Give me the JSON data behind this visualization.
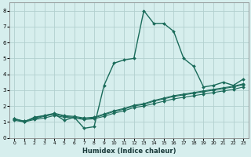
{
  "xlabel": "Humidex (Indice chaleur)",
  "xlim": [
    -0.5,
    23.5
  ],
  "ylim": [
    0,
    8.5
  ],
  "xticks": [
    0,
    1,
    2,
    3,
    4,
    5,
    6,
    7,
    8,
    9,
    10,
    11,
    12,
    13,
    14,
    15,
    16,
    17,
    18,
    19,
    20,
    21,
    22,
    23
  ],
  "yticks": [
    0,
    1,
    2,
    3,
    4,
    5,
    6,
    7,
    8
  ],
  "bg_color": "#d6eeed",
  "grid_color": "#b2d0ce",
  "line_color": "#1a6b5a",
  "series": [
    {
      "x": [
        0,
        1,
        2,
        3,
        4,
        5,
        6,
        7,
        8,
        9,
        10,
        11,
        12,
        13,
        14,
        15,
        16,
        17,
        18,
        19,
        20,
        21,
        22,
        23
      ],
      "y": [
        1.2,
        1.0,
        1.3,
        1.4,
        1.5,
        1.1,
        1.3,
        0.6,
        0.7,
        3.3,
        4.7,
        4.9,
        5.0,
        8.0,
        7.2,
        7.2,
        6.7,
        5.0,
        4.5,
        3.2,
        3.3,
        3.5,
        3.3,
        3.7
      ],
      "marker": "D",
      "markersize": 2.0,
      "linewidth": 1.0
    },
    {
      "x": [
        0,
        1,
        2,
        3,
        4,
        5,
        6,
        7,
        8,
        9,
        10,
        11,
        12,
        13,
        14,
        15,
        16,
        17,
        18,
        19,
        20,
        21,
        22,
        23
      ],
      "y": [
        1.1,
        1.0,
        1.15,
        1.25,
        1.4,
        1.3,
        1.25,
        1.15,
        1.2,
        1.35,
        1.55,
        1.7,
        1.9,
        2.0,
        2.15,
        2.3,
        2.45,
        2.55,
        2.65,
        2.75,
        2.85,
        2.95,
        3.05,
        3.2
      ],
      "marker": "D",
      "markersize": 2.0,
      "linewidth": 0.8
    },
    {
      "x": [
        0,
        1,
        2,
        3,
        4,
        5,
        6,
        7,
        8,
        9,
        10,
        11,
        12,
        13,
        14,
        15,
        16,
        17,
        18,
        19,
        20,
        21,
        22,
        23
      ],
      "y": [
        1.15,
        1.05,
        1.2,
        1.35,
        1.5,
        1.35,
        1.3,
        1.2,
        1.25,
        1.45,
        1.65,
        1.8,
        2.0,
        2.1,
        2.3,
        2.45,
        2.6,
        2.7,
        2.8,
        2.9,
        3.0,
        3.1,
        3.2,
        3.35
      ],
      "marker": "D",
      "markersize": 2.0,
      "linewidth": 0.8
    },
    {
      "x": [
        0,
        1,
        2,
        3,
        4,
        5,
        6,
        7,
        8,
        9,
        10,
        11,
        12,
        13,
        14,
        15,
        16,
        17,
        18,
        19,
        20,
        21,
        22,
        23
      ],
      "y": [
        1.2,
        1.05,
        1.25,
        1.4,
        1.55,
        1.4,
        1.35,
        1.25,
        1.3,
        1.5,
        1.7,
        1.85,
        2.05,
        2.15,
        2.35,
        2.5,
        2.65,
        2.75,
        2.85,
        2.95,
        3.05,
        3.15,
        3.25,
        3.4
      ],
      "marker": "D",
      "markersize": 2.0,
      "linewidth": 0.8
    }
  ]
}
